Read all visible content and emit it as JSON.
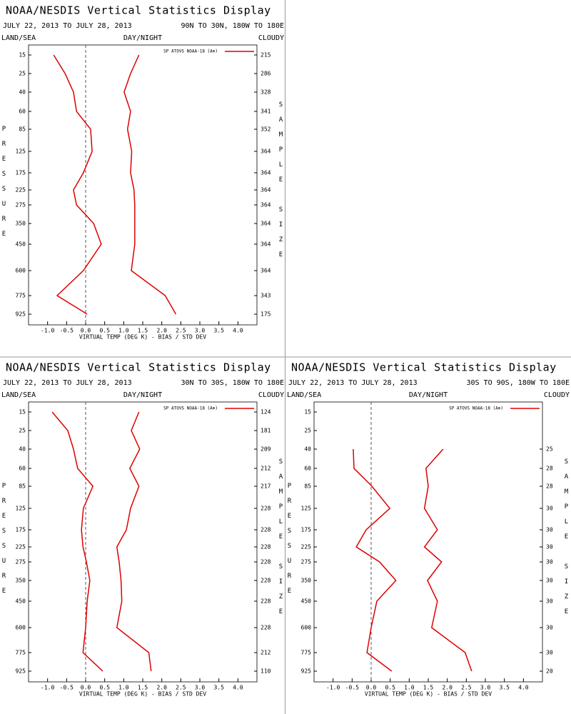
{
  "chart_data": [
    {
      "type": "line",
      "title": "NOAA/NESDIS Vertical Statistics Display",
      "date_range": "JULY 22, 2013 TO JULY 28, 2013",
      "region": "90N TO 30N, 180W TO 180E",
      "land_sea": "LAND/SEA",
      "day_night": "DAY/NIGHT",
      "cloudy": "CLOUDY",
      "x_label": "VIRTUAL TEMP (DEG K) - BIAS / STD DEV",
      "y_label": "PRESSURE",
      "y2_label": "SAMPLE SIZE",
      "categories": [
        15,
        25,
        40,
        60,
        85,
        125,
        175,
        225,
        275,
        350,
        450,
        600,
        775,
        925
      ],
      "series": [
        {
          "name": "SP ATOVS NOAA-18 (A⊕)",
          "color": "#dd0000",
          "values": [
            -0.84,
            -0.54,
            -0.32,
            -0.24,
            0.13,
            0.17,
            -0.06,
            -0.32,
            -0.24,
            0.21,
            0.41,
            -0.06,
            -0.75,
            0.04
          ]
        },
        {
          "color": "#dd0000",
          "values": [
            1.4,
            1.18,
            1.01,
            1.18,
            1.1,
            1.21,
            1.18,
            1.27,
            1.29,
            1.29,
            1.29,
            1.2,
            2.09,
            2.37
          ]
        }
      ],
      "sample_size": [
        215,
        286,
        328,
        341,
        352,
        364,
        364,
        364,
        364,
        364,
        364,
        364,
        343,
        175
      ],
      "xlim": [
        -1.5,
        4.5
      ],
      "xticks": [
        {
          "value": -1,
          "label": "-1.0"
        },
        -0.5,
        {
          "value": 0,
          "label": "0.0"
        },
        0.5,
        {
          "value": 1,
          "label": "1.0"
        },
        1.5,
        {
          "value": 2,
          "label": "2.0"
        },
        2.5,
        {
          "value": 3,
          "label": "3.0"
        },
        3.5,
        {
          "value": 4,
          "label": "4.0"
        }
      ]
    },
    {
      "type": "line",
      "title": "NOAA/NESDIS Vertical Statistics Display",
      "date_range": "JULY 22, 2013 TO JULY 28, 2013",
      "region": "30N TO 30S, 180W TO 180E",
      "land_sea": "LAND/SEA",
      "day_night": "DAY/NIGHT",
      "cloudy": "CLOUDY",
      "x_label": "VIRTUAL TEMP (DEG K) - BIAS / STD DEV",
      "y_label": "PRESSURE",
      "y2_label": "SAMPLE SIZE",
      "categories": [
        15,
        25,
        40,
        60,
        85,
        125,
        175,
        225,
        275,
        350,
        450,
        600,
        775,
        925
      ],
      "series": [
        {
          "name": "SP ATOVS NOAA-18 (A⊕)",
          "color": "#dd0000",
          "values": [
            -0.88,
            -0.47,
            -0.32,
            -0.21,
            0.19,
            -0.06,
            -0.11,
            -0.07,
            0.02,
            0.11,
            0.04,
            0,
            -0.07,
            0.45
          ]
        },
        {
          "color": "#dd0000",
          "values": [
            1.4,
            1.2,
            1.42,
            1.16,
            1.4,
            1.18,
            1.07,
            0.82,
            0.88,
            0.93,
            0.95,
            0.82,
            1.66,
            1.72
          ]
        }
      ],
      "sample_size": [
        124,
        181,
        209,
        212,
        217,
        228,
        228,
        228,
        228,
        228,
        228,
        228,
        212,
        110
      ],
      "xlim": [
        -1.5,
        4.5
      ],
      "xticks": [
        {
          "value": -1,
          "label": "-1.0"
        },
        -0.5,
        {
          "value": 0,
          "label": "0.0"
        },
        0.5,
        {
          "value": 1,
          "label": "1.0"
        },
        1.5,
        {
          "value": 2,
          "label": "2.0"
        },
        2.5,
        {
          "value": 3,
          "label": "3.0"
        },
        3.5,
        {
          "value": 4,
          "label": "4.0"
        }
      ]
    },
    {
      "type": "line",
      "title": "NOAA/NESDIS Vertical Statistics Display",
      "date_range": "JULY 22, 2013 TO JULY 28, 2013",
      "region": "30S TO 90S, 180W TO 180E",
      "land_sea": "LAND/SEA",
      "day_night": "DAY/NIGHT",
      "cloudy": "CLOUDY",
      "x_label": "VIRTUAL TEMP (DEG K) - BIAS / STD DEV",
      "y_label": "PRESSURE",
      "y2_label": "SAMPLE SIZE",
      "categories": [
        15,
        25,
        40,
        60,
        85,
        125,
        175,
        225,
        275,
        350,
        450,
        600,
        775,
        925
      ],
      "series": [
        {
          "name": "SP ATOVS NOAA-18 (A⊕)",
          "color": "#dd0000",
          "values": [
            null,
            null,
            -0.47,
            -0.45,
            0.02,
            0.49,
            -0.13,
            -0.39,
            0.22,
            0.65,
            0.15,
            0,
            -0.11,
            0.54
          ]
        },
        {
          "color": "#dd0000",
          "values": [
            null,
            null,
            1.89,
            1.44,
            1.5,
            1.4,
            1.74,
            1.4,
            1.85,
            1.48,
            1.74,
            1.59,
            2.47,
            2.64
          ]
        }
      ],
      "sample_size": [
        null,
        null,
        25,
        28,
        28,
        30,
        30,
        30,
        30,
        30,
        30,
        30,
        30,
        20
      ],
      "xlim": [
        -1.5,
        4.5
      ],
      "xticks": [
        {
          "value": -1,
          "label": "-1.0"
        },
        -0.5,
        {
          "value": 0,
          "label": "0.0"
        },
        0.5,
        {
          "value": 1,
          "label": "1.0"
        },
        1.5,
        {
          "value": 2,
          "label": "2.0"
        },
        2.5,
        {
          "value": 3,
          "label": "3.0"
        },
        3.5,
        {
          "value": 4,
          "label": "4.0"
        }
      ]
    }
  ]
}
